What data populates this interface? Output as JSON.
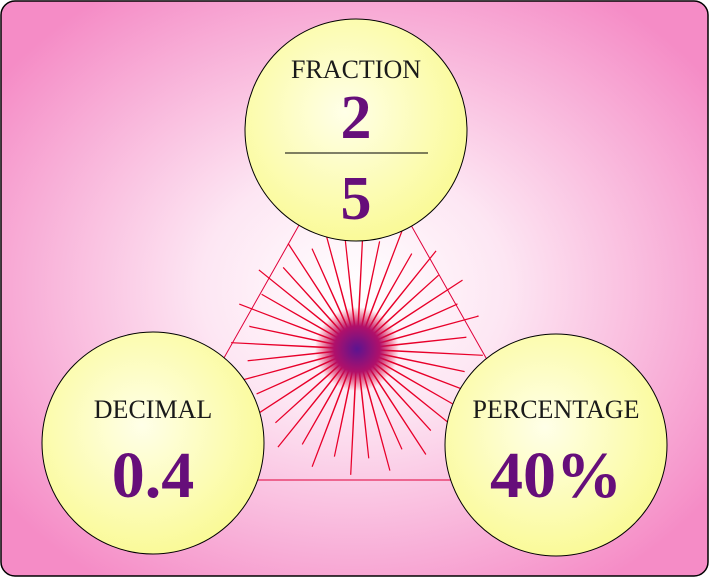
{
  "colors": {
    "background_edge": "#f58cc6",
    "background_center": "#ffffff",
    "circle_fill": "#fafa96",
    "circle_highlight": "#ffffe8",
    "value_text": "#660e7a",
    "rays": "#e8002a",
    "center_glow": "#5b1490",
    "triangle_line": "#e0003a"
  },
  "fraction": {
    "label": "FRACTION",
    "numerator": "2",
    "denominator": "5"
  },
  "decimal": {
    "label": "DECIMAL",
    "value": "0.4"
  },
  "percentage": {
    "label": "PERCENTAGE",
    "value": "40%"
  }
}
